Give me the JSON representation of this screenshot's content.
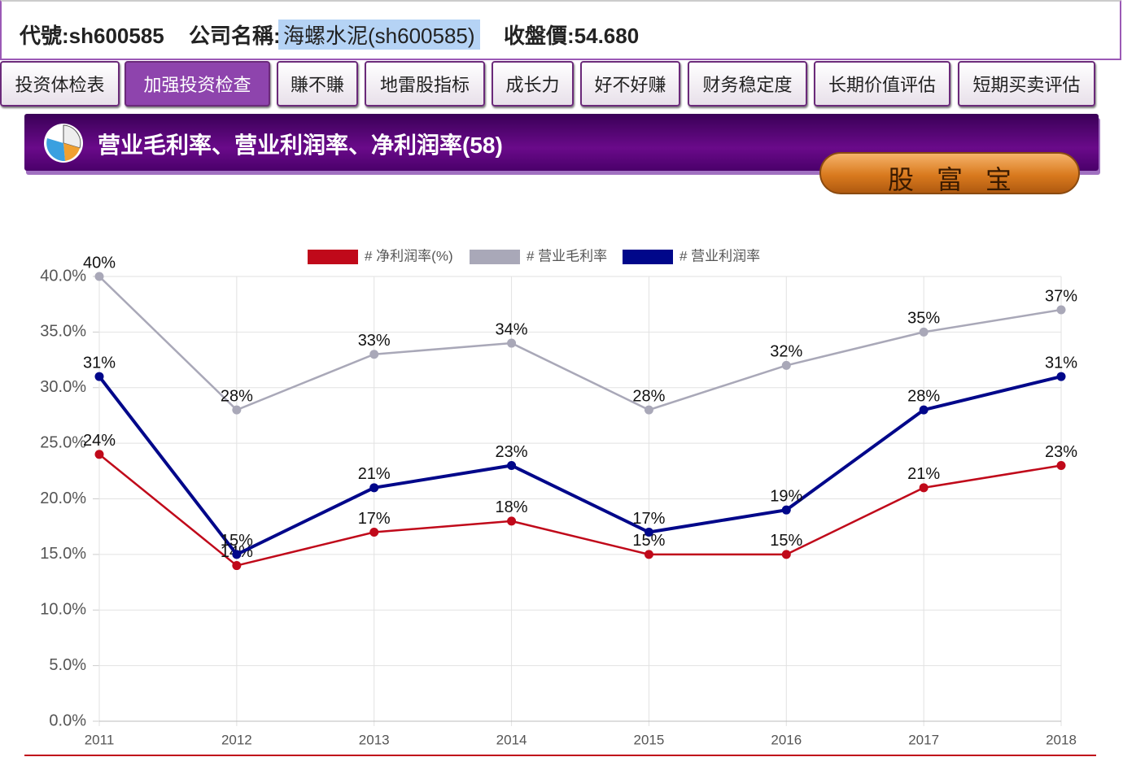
{
  "header": {
    "code": "代號:sh600585",
    "company_label": "公司名稱:",
    "company": "海螺水泥(sh600585)",
    "price": "收盤價:54.680"
  },
  "tabs": [
    "投资体检表",
    "加强投资检查",
    "賺不賺",
    "地雷股指标",
    "成长力",
    "好不好赚",
    "财务稳定度",
    "长期价值评估",
    "短期买卖评估"
  ],
  "section_title": "营业毛利率、营业利润率、净利润率(58)",
  "badge": "股富宝",
  "chart_data": {
    "type": "line",
    "categories": [
      "2011",
      "2012",
      "2013",
      "2014",
      "2015",
      "2016",
      "2017",
      "2018"
    ],
    "series": [
      {
        "name": "# 净利润率(%)",
        "color": "#c0091a",
        "values": [
          24,
          14,
          17,
          18,
          15,
          15,
          21,
          23
        ],
        "value_labels": [
          "24%",
          "14%",
          "17%",
          "18%",
          "15%",
          "15%",
          "21%",
          "23%"
        ]
      },
      {
        "name": "# 营业毛利率",
        "color": "#a9a8b8",
        "values": [
          40,
          28,
          33,
          34,
          28,
          32,
          35,
          37
        ],
        "value_labels": [
          "40%",
          "28%",
          "33%",
          "34%",
          "28%",
          "32%",
          "35%",
          "37%"
        ]
      },
      {
        "name": "# 营业利润率",
        "color": "#00078a",
        "values": [
          31,
          15,
          21,
          23,
          17,
          19,
          28,
          31
        ],
        "value_labels": [
          "31%",
          "15%",
          "21%",
          "23%",
          "17%",
          "19%",
          "28%",
          "31%"
        ]
      }
    ],
    "ylim": [
      0,
      40
    ],
    "yticks": [
      {
        "value": 0,
        "label": "0.0%"
      },
      {
        "value": 5,
        "label": "5.0%"
      },
      {
        "value": 10,
        "label": "10.0%"
      },
      {
        "value": 15,
        "label": "15.0%"
      },
      {
        "value": 20,
        "label": "20.0%"
      },
      {
        "value": 25,
        "label": "25.0%"
      },
      {
        "value": 30,
        "label": "30.0%"
      },
      {
        "value": 35,
        "label": "35.0%"
      },
      {
        "value": 40,
        "label": "40.0%"
      }
    ],
    "grid": true
  }
}
